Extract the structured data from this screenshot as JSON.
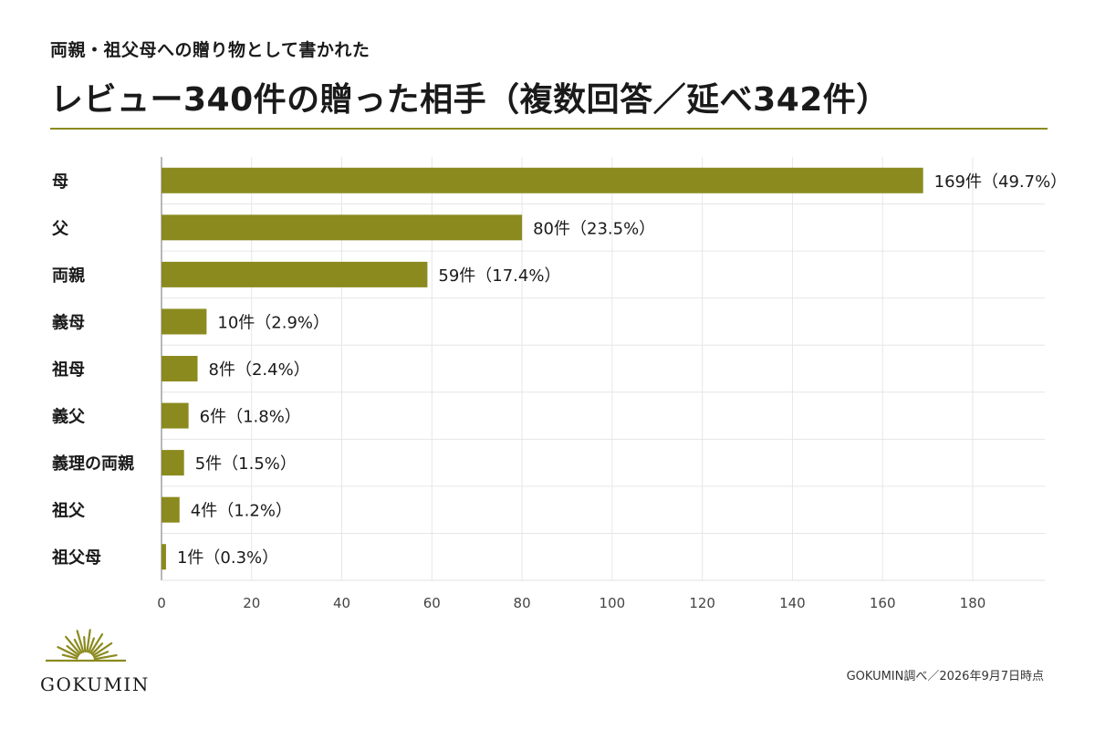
{
  "header": {
    "subtitle": "両親・祖父母への贈り物として書かれた",
    "title": "レビュー340件の贈った相手（複数回答／延べ342件）"
  },
  "colors": {
    "bar": "#8b8a1e",
    "grid": "#e6e6e6",
    "axis": "#888888",
    "rule": "#8b8a1e"
  },
  "chart_data": {
    "type": "bar",
    "orientation": "horizontal",
    "categories": [
      "母",
      "父",
      "両親",
      "義母",
      "祖母",
      "義父",
      "義理の両親",
      "祖父",
      "祖父母"
    ],
    "values": [
      169,
      80,
      59,
      10,
      8,
      6,
      5,
      4,
      1
    ],
    "data_labels": [
      "169件（49.7%）",
      "80件（23.5%）",
      "59件（17.4%）",
      "10件（2.9%）",
      "8件（2.4%）",
      "6件（1.8%）",
      "5件（1.5%）",
      "4件（1.2%）",
      "1件（0.3%）"
    ],
    "xticks": [
      0,
      20,
      40,
      60,
      80,
      100,
      120,
      140,
      160,
      180
    ],
    "xlim": [
      0,
      196
    ],
    "grid": true,
    "legend": "none"
  },
  "logo": {
    "text": "GOKUMIN"
  },
  "footer": {
    "source": "GOKUMIN調べ／2026年9月7日時点"
  }
}
